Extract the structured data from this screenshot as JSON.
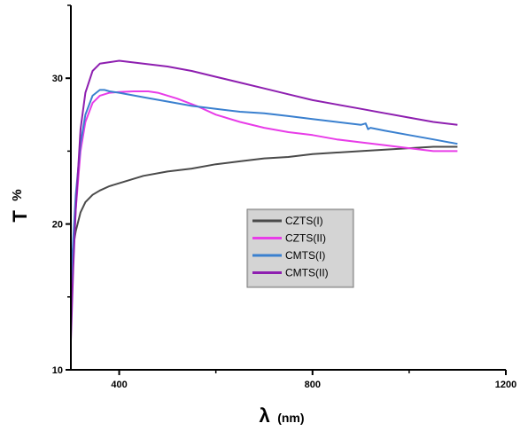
{
  "chart_data": {
    "type": "line",
    "xlabel": {
      "symbol": "λ",
      "unit": "(nm)"
    },
    "ylabel": {
      "symbol": "T",
      "unit": "%"
    },
    "xlim": [
      300,
      1200
    ],
    "ylim": [
      10,
      35
    ],
    "xticks": [
      400,
      800,
      1200
    ],
    "yticks": [
      10,
      20,
      30
    ],
    "grid": false,
    "legend_position": "center",
    "series": [
      {
        "name": "CZTS(I)",
        "color": "#4a4a4a",
        "x": [
          300,
          305,
          310,
          320,
          330,
          345,
          360,
          380,
          400,
          450,
          500,
          550,
          600,
          650,
          700,
          750,
          800,
          850,
          900,
          950,
          1000,
          1050,
          1100
        ],
        "y": [
          17.0,
          18.5,
          19.5,
          20.8,
          21.5,
          22.0,
          22.3,
          22.6,
          22.8,
          23.3,
          23.6,
          23.8,
          24.1,
          24.3,
          24.5,
          24.6,
          24.8,
          24.9,
          25.0,
          25.1,
          25.2,
          25.3,
          25.3
        ]
      },
      {
        "name": "CZTS(II)",
        "color": "#e83ce8",
        "x": [
          300,
          305,
          310,
          320,
          330,
          345,
          360,
          380,
          400,
          430,
          460,
          480,
          520,
          560,
          600,
          650,
          700,
          750,
          800,
          850,
          900,
          950,
          1000,
          1050,
          1100
        ],
        "y": [
          14.0,
          18.0,
          21.0,
          25.0,
          27.0,
          28.3,
          28.8,
          29.0,
          29.05,
          29.1,
          29.1,
          29.0,
          28.6,
          28.1,
          27.5,
          27.0,
          26.6,
          26.3,
          26.1,
          25.8,
          25.6,
          25.4,
          25.2,
          25.0,
          25.0
        ]
      },
      {
        "name": "CMTS(I)",
        "color": "#3a80cf",
        "x": [
          300,
          305,
          310,
          320,
          330,
          345,
          360,
          370,
          380,
          400,
          450,
          500,
          550,
          600,
          650,
          700,
          750,
          800,
          850,
          900,
          910,
          915,
          920,
          950,
          1000,
          1050,
          1100
        ],
        "y": [
          15.5,
          19.0,
          22.0,
          25.5,
          27.5,
          28.8,
          29.2,
          29.2,
          29.1,
          29.0,
          28.7,
          28.4,
          28.1,
          27.9,
          27.7,
          27.6,
          27.4,
          27.2,
          27.0,
          26.8,
          26.9,
          26.5,
          26.6,
          26.4,
          26.1,
          25.8,
          25.5
        ]
      },
      {
        "name": "CMTS(II)",
        "color": "#8e1fb0",
        "x": [
          300,
          305,
          310,
          320,
          330,
          345,
          360,
          380,
          400,
          450,
          500,
          550,
          600,
          650,
          700,
          750,
          800,
          850,
          900,
          950,
          1000,
          1050,
          1100
        ],
        "y": [
          12.0,
          17.0,
          21.0,
          26.5,
          29.0,
          30.5,
          31.0,
          31.1,
          31.2,
          31.0,
          30.8,
          30.5,
          30.1,
          29.7,
          29.3,
          28.9,
          28.5,
          28.2,
          27.9,
          27.6,
          27.3,
          27.0,
          26.8
        ]
      }
    ]
  }
}
